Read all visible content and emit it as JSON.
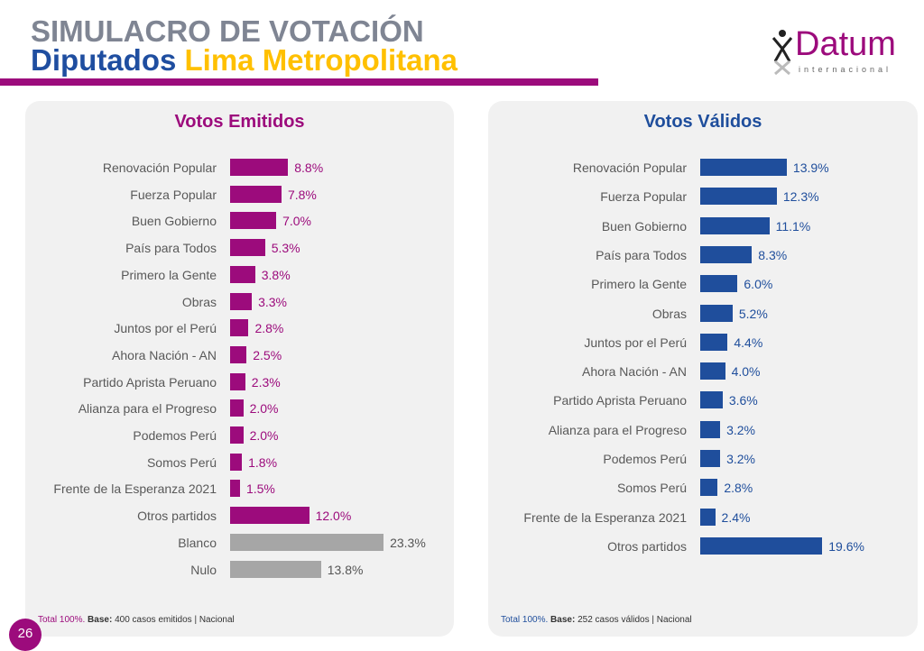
{
  "header": {
    "title": "SIMULACRO DE VOTACIÓN",
    "subtitle_a": "Diputados",
    "subtitle_b": "Lima Metropolitana"
  },
  "logo": {
    "name": "Datum",
    "sub": "internacional"
  },
  "page_number": "26",
  "colors": {
    "magenta": "#9c0b7c",
    "blue": "#1f4e9c",
    "gray": "#a6a6a6"
  },
  "chart_data": [
    {
      "type": "bar",
      "orientation": "horizontal",
      "title": "Votos Emitidos",
      "unit": "%",
      "categories": [
        "Renovación Popular",
        "Fuerza Popular",
        "Buen Gobierno",
        "País para Todos",
        "Primero la Gente",
        "Obras",
        "Juntos por el Perú",
        "Ahora Nación - AN",
        "Partido Aprista Peruano",
        "Alianza para el Progreso",
        "Podemos Perú",
        "Somos Perú",
        "Frente de la Esperanza 2021",
        "Otros partidos",
        "Blanco",
        "Nulo"
      ],
      "values": [
        8.8,
        7.8,
        7.0,
        5.3,
        3.8,
        3.3,
        2.8,
        2.5,
        2.3,
        2.0,
        2.0,
        1.8,
        1.5,
        12.0,
        23.3,
        13.8
      ],
      "labels": [
        "8.8%",
        "7.8%",
        "7.0%",
        "5.3%",
        "3.8%",
        "3.3%",
        "2.8%",
        "2.5%",
        "2.3%",
        "2.0%",
        "2.0%",
        "1.8%",
        "1.5%",
        "12.0%",
        "23.3%",
        "13.8%"
      ],
      "footnote": {
        "total": "Total 100%.",
        "base_label": "Base:",
        "base_text": " 400 casos emitidos | Nacional"
      }
    },
    {
      "type": "bar",
      "orientation": "horizontal",
      "title": "Votos Válidos",
      "unit": "%",
      "categories": [
        "Renovación Popular",
        "Fuerza Popular",
        "Buen Gobierno",
        "País para Todos",
        "Primero la Gente",
        "Obras",
        "Juntos por el Perú",
        "Ahora Nación - AN",
        "Partido Aprista Peruano",
        "Alianza para el Progreso",
        "Podemos Perú",
        "Somos Perú",
        "Frente de la Esperanza 2021",
        "Otros partidos"
      ],
      "values": [
        13.9,
        12.3,
        11.1,
        8.3,
        6.0,
        5.2,
        4.4,
        4.0,
        3.6,
        3.2,
        3.2,
        2.8,
        2.4,
        19.6
      ],
      "labels": [
        "13.9%",
        "12.3%",
        "11.1%",
        "8.3%",
        "6.0%",
        "5.2%",
        "4.4%",
        "4.0%",
        "3.6%",
        "3.2%",
        "3.2%",
        "2.8%",
        "2.4%",
        "19.6%"
      ],
      "footnote": {
        "total": "Total 100%.",
        "base_label": "Base:",
        "base_text": " 252 casos válidos | Nacional"
      }
    }
  ]
}
